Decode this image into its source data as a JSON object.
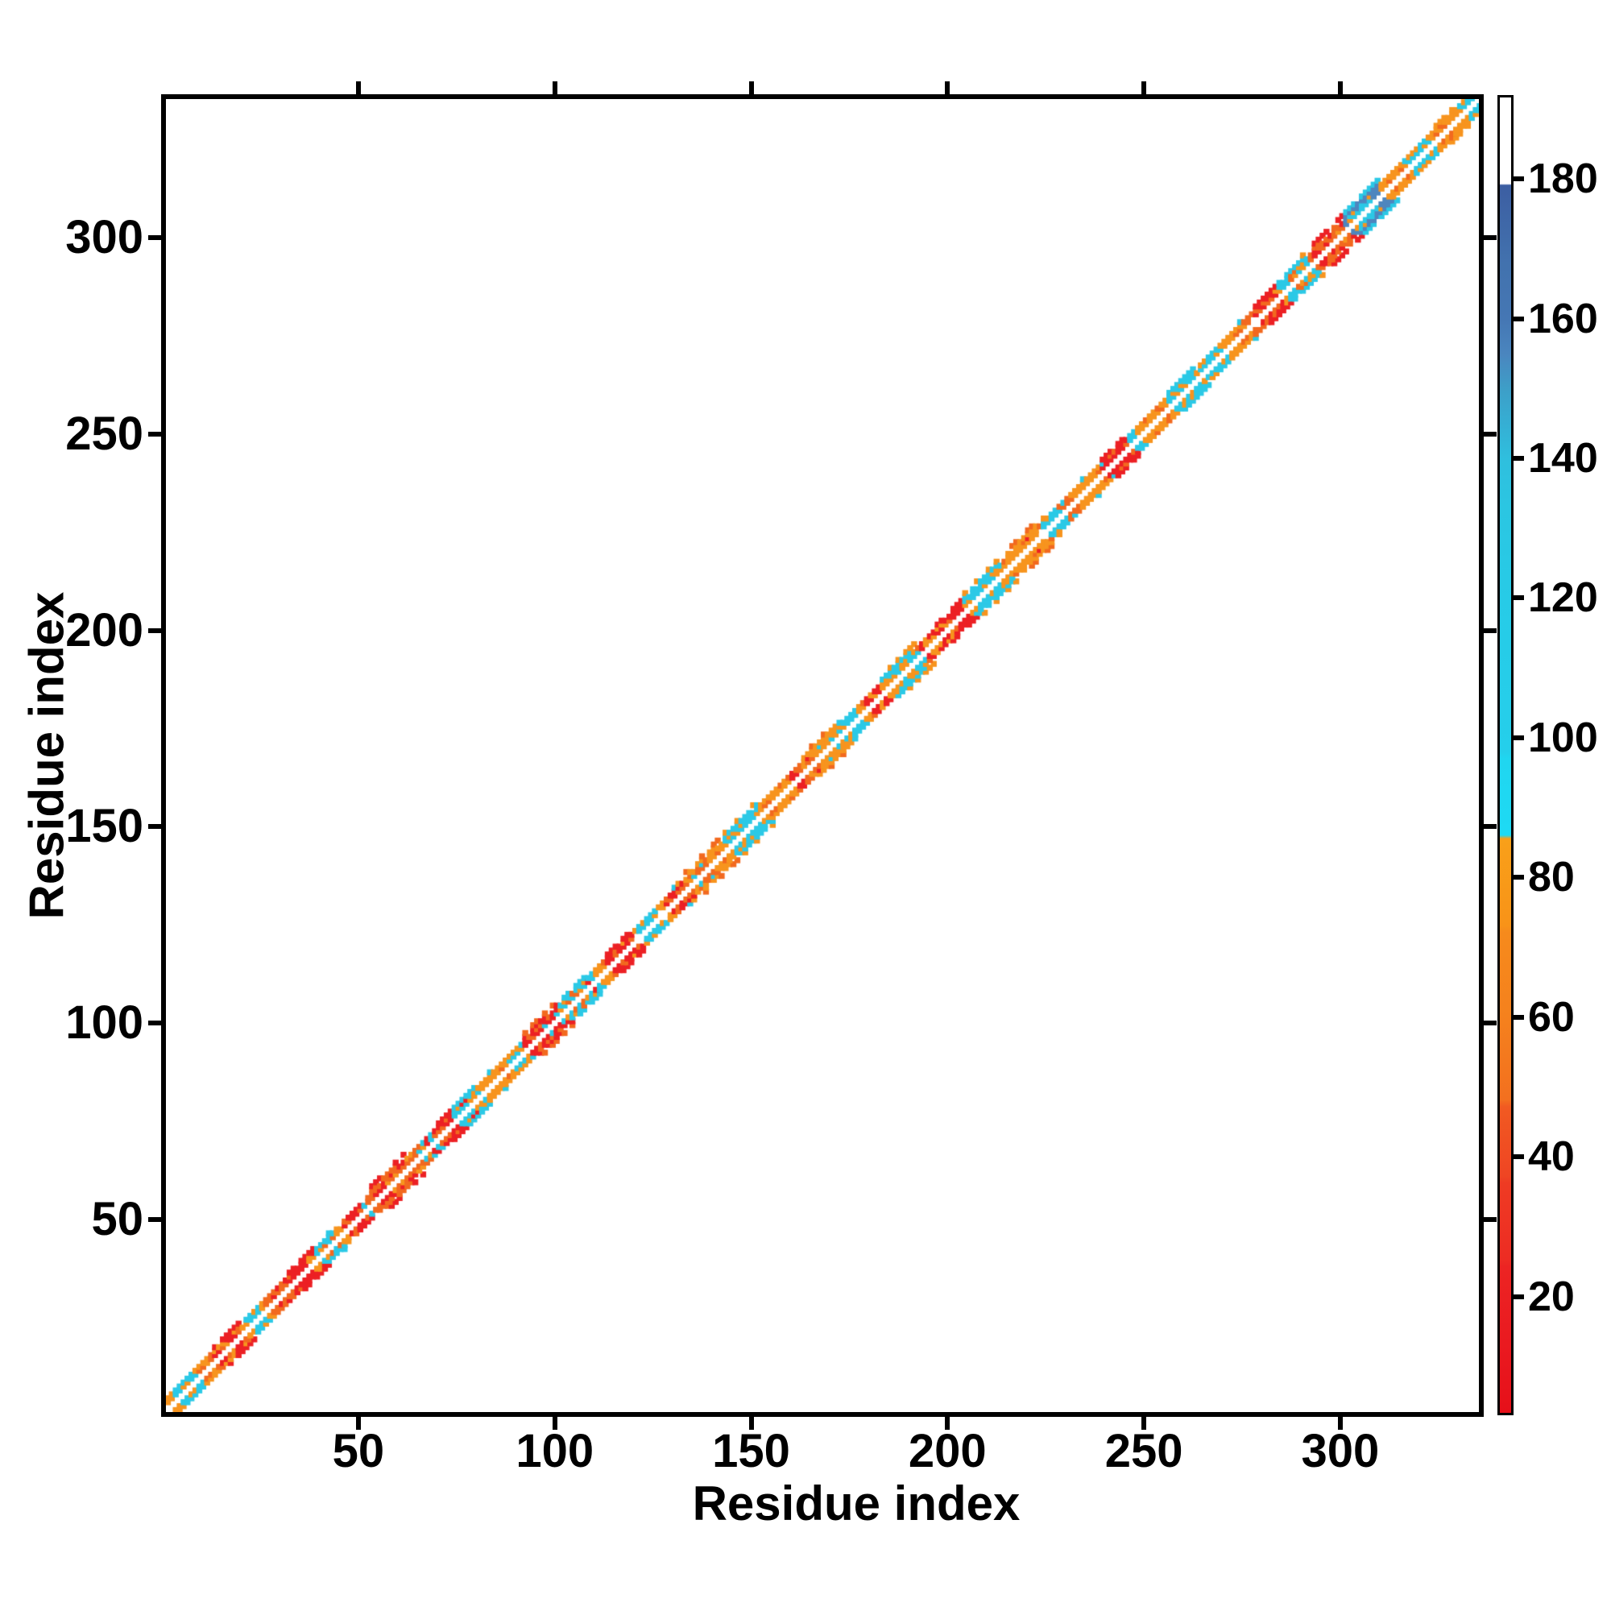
{
  "chart_data": {
    "type": "heatmap",
    "title": "",
    "xlabel": "Residue index",
    "ylabel": "Residue index",
    "xlim": [
      1,
      335
    ],
    "ylim": [
      1,
      335
    ],
    "x_ticks": [
      50,
      100,
      150,
      200,
      250,
      300
    ],
    "y_ticks": [
      50,
      100,
      150,
      200,
      250,
      300
    ],
    "grid": false,
    "background": "#ffffff",
    "frame_color": "#000000",
    "description": "Symmetric protein residue-residue contact map: colored square markers only near the main diagonal (sequence separation 2-5 residues), with a thin white line along the exact diagonal; all off-diagonal area is empty white.",
    "colorbar": {
      "ticks": [
        20,
        40,
        60,
        80,
        100,
        120,
        140,
        160,
        180
      ],
      "vmin": 3,
      "vmax": 192,
      "gradient_stops": [
        {
          "v": 192,
          "color": "#ffffff"
        },
        {
          "v": 179.6,
          "color": "#ffffff"
        },
        {
          "v": 179.4,
          "color": "#3c5ea2"
        },
        {
          "v": 168,
          "color": "#4272ae"
        },
        {
          "v": 160,
          "color": "#4577b4"
        },
        {
          "v": 155,
          "color": "#4a86bf"
        },
        {
          "v": 150,
          "color": "#3d9fc8"
        },
        {
          "v": 145,
          "color": "#35afd4"
        },
        {
          "v": 140,
          "color": "#2fbfde"
        },
        {
          "v": 133,
          "color": "#2bc6e2"
        },
        {
          "v": 120,
          "color": "#27cbe7"
        },
        {
          "v": 98,
          "color": "#25cfeb"
        },
        {
          "v": 97,
          "color": "#20d6f0"
        },
        {
          "v": 86,
          "color": "#1edaf4"
        },
        {
          "v": 85.5,
          "color": "#f9a019"
        },
        {
          "v": 73,
          "color": "#f89318"
        },
        {
          "v": 72,
          "color": "#f68a1c"
        },
        {
          "v": 60,
          "color": "#f5811d"
        },
        {
          "v": 48,
          "color": "#f3701f"
        },
        {
          "v": 47,
          "color": "#f15a22"
        },
        {
          "v": 37,
          "color": "#ef4523"
        },
        {
          "v": 36,
          "color": "#ee3b23"
        },
        {
          "v": 25,
          "color": "#ed2c23"
        },
        {
          "v": 24,
          "color": "#ec2423"
        },
        {
          "v": 13,
          "color": "#ea1a20"
        },
        {
          "v": 3,
          "color": "#e61019"
        }
      ]
    },
    "palette": {
      "orange": "#f7941e",
      "deep": "#f2691f",
      "red": "#ec2024",
      "cyan": "#2bc9e6",
      "steel": "#4e86be"
    },
    "band": {
      "offsets": [
        2,
        3
      ],
      "outer_offsets": [
        4,
        5
      ],
      "dropout": 0.07,
      "outer_rate": 0.07,
      "seed": 1337,
      "class_weights": [
        [
          "orange",
          0.56
        ],
        [
          "cyan",
          0.17
        ],
        [
          "deep",
          0.14
        ],
        [
          "red",
          0.13
        ]
      ]
    },
    "blobs": [
      [
        6,
        2,
        "cyan",
        0
      ],
      [
        11,
        2,
        "orange",
        0
      ],
      [
        16,
        3,
        "red",
        1
      ],
      [
        23,
        2,
        "cyan",
        0
      ],
      [
        29,
        2,
        "deep",
        0
      ],
      [
        35,
        3,
        "red",
        1
      ],
      [
        41,
        2,
        "cyan",
        0
      ],
      [
        48,
        2,
        "red",
        0
      ],
      [
        57,
        4,
        "deep",
        1
      ],
      [
        64,
        2,
        "orange",
        0
      ],
      [
        70,
        3,
        "red",
        1
      ],
      [
        77,
        3,
        "cyan",
        1
      ],
      [
        84,
        2,
        "orange",
        0
      ],
      [
        90,
        2,
        "cyan",
        0
      ],
      [
        96,
        4,
        "red",
        1
      ],
      [
        104,
        3,
        "cyan",
        1
      ],
      [
        111,
        2,
        "orange",
        0
      ],
      [
        116,
        3,
        "red",
        1
      ],
      [
        123,
        2,
        "cyan",
        0
      ],
      [
        130,
        2,
        "red",
        0
      ],
      [
        137,
        4,
        "orange",
        1
      ],
      [
        147,
        4,
        "cyan",
        1
      ],
      [
        155,
        2,
        "orange",
        0
      ],
      [
        161,
        2,
        "red",
        0
      ],
      [
        167,
        4,
        "orange",
        1
      ],
      [
        174,
        2,
        "cyan",
        0
      ],
      [
        180,
        2,
        "red",
        0
      ],
      [
        187,
        4,
        "cyan",
        1
      ],
      [
        194,
        2,
        "red",
        0
      ],
      [
        200,
        3,
        "red",
        1
      ],
      [
        209,
        5,
        "cyan",
        1
      ],
      [
        218,
        4,
        "orange",
        1
      ],
      [
        226,
        2,
        "cyan",
        0
      ],
      [
        234,
        3,
        "orange",
        0
      ],
      [
        242,
        3,
        "red",
        1
      ],
      [
        251,
        3,
        "orange",
        0
      ],
      [
        259,
        3,
        "cyan",
        1
      ],
      [
        267,
        3,
        "cyan",
        0
      ],
      [
        274,
        2,
        "orange",
        0
      ],
      [
        281,
        3,
        "red",
        1
      ],
      [
        288,
        4,
        "cyan",
        1
      ],
      [
        296,
        4,
        "deep",
        1
      ],
      [
        305,
        4,
        "steel",
        1
      ],
      [
        313,
        3,
        "orange",
        0
      ],
      [
        319,
        3,
        "cyan",
        0
      ],
      [
        327,
        3,
        "orange",
        1
      ],
      [
        332,
        2,
        "cyan",
        0
      ]
    ]
  }
}
